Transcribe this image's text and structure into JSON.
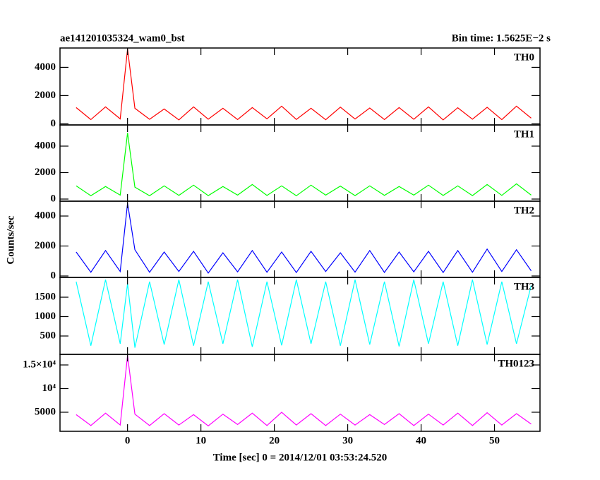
{
  "chart_data": [
    {
      "type": "line",
      "title": "ae141201035324_wam0_bst",
      "subtitle": "Bin time: 1.5625E−2 s",
      "x": [
        -7,
        -5,
        -3,
        -1,
        0,
        1,
        3,
        5,
        7,
        9,
        11,
        13,
        15,
        17,
        19,
        21,
        23,
        25,
        27,
        29,
        31,
        33,
        35,
        37,
        39,
        41,
        43,
        45,
        47,
        49,
        51,
        53,
        55
      ],
      "series": [
        {
          "name": "TH0",
          "color": "#ff0000",
          "values": [
            1150,
            300,
            1200,
            350,
            5300,
            1100,
            320,
            1050,
            280,
            1200,
            330,
            1100,
            300,
            1150,
            350,
            1250,
            310,
            1100,
            290,
            1180,
            340,
            1120,
            300,
            1150,
            320,
            1200,
            280,
            1140,
            330,
            1170,
            300,
            1250,
            400
          ]
        }
      ],
      "xlim": [
        -9.2,
        56.2
      ],
      "xticks": [
        0,
        10,
        20,
        30,
        40,
        50
      ],
      "ylim": [
        -80,
        5370
      ],
      "yticks": [
        0,
        2000,
        4000
      ]
    },
    {
      "type": "line",
      "x": [
        -7,
        -5,
        -3,
        -1,
        0,
        1,
        3,
        5,
        7,
        9,
        11,
        13,
        15,
        17,
        19,
        21,
        23,
        25,
        27,
        29,
        31,
        33,
        35,
        37,
        39,
        41,
        43,
        45,
        47,
        49,
        51,
        53,
        55
      ],
      "series": [
        {
          "name": "TH1",
          "color": "#00ff00",
          "values": [
            1000,
            250,
            950,
            300,
            5000,
            900,
            250,
            1000,
            280,
            1050,
            260,
            950,
            300,
            1100,
            270,
            1000,
            250,
            1050,
            300,
            980,
            260,
            1000,
            280,
            950,
            300,
            1050,
            270,
            1000,
            260,
            1100,
            280,
            1150,
            300
          ]
        }
      ],
      "xlim": [
        -9.2,
        56.2
      ],
      "xticks": [
        0,
        10,
        20,
        30,
        40,
        50
      ],
      "ylim": [
        -160,
        5600
      ],
      "yticks": [
        0,
        2000,
        4000
      ]
    },
    {
      "type": "line",
      "ylabel": "Counts/sec",
      "x": [
        -7,
        -5,
        -3,
        -1,
        0,
        1,
        3,
        5,
        7,
        9,
        11,
        13,
        15,
        17,
        19,
        21,
        23,
        25,
        27,
        29,
        31,
        33,
        35,
        37,
        39,
        41,
        43,
        45,
        47,
        49,
        51,
        53,
        55
      ],
      "series": [
        {
          "name": "TH2",
          "color": "#0000ff",
          "values": [
            1600,
            250,
            1700,
            300,
            4850,
            1750,
            250,
            1600,
            300,
            1650,
            200,
            1550,
            280,
            1700,
            250,
            1600,
            230,
            1650,
            300,
            1550,
            260,
            1700,
            240,
            1600,
            280,
            1650,
            230,
            1700,
            250,
            1800,
            300,
            1750,
            350
          ]
        }
      ],
      "xlim": [
        -9.2,
        56.2
      ],
      "xticks": [
        0,
        10,
        20,
        30,
        40,
        50
      ],
      "ylim": [
        -94,
        4990
      ],
      "yticks": [
        0,
        2000,
        4000
      ]
    },
    {
      "type": "line",
      "x": [
        -7,
        -5,
        -3,
        -1,
        0,
        1,
        3,
        5,
        7,
        9,
        11,
        13,
        15,
        17,
        19,
        21,
        23,
        25,
        27,
        29,
        31,
        33,
        35,
        37,
        39,
        41,
        43,
        45,
        47,
        49,
        51,
        53,
        55
      ],
      "series": [
        {
          "name": "TH3",
          "color": "#00ffff",
          "values": [
            1900,
            250,
            1950,
            300,
            1850,
            200,
            1900,
            280,
            1950,
            250,
            1900,
            300,
            1950,
            220,
            1900,
            260,
            1950,
            300,
            1900,
            250,
            1950,
            280,
            1900,
            230,
            1950,
            300,
            1900,
            250,
            1950,
            280,
            1900,
            300,
            1800
          ]
        }
      ],
      "xlim": [
        -9.2,
        56.2
      ],
      "xticks": [
        0,
        10,
        20,
        30,
        40,
        50
      ],
      "ylim": [
        27,
        2010
      ],
      "yticks": [
        500,
        1000,
        1500
      ]
    },
    {
      "type": "line",
      "xlabel": "Time [sec] 0 = 2014/12/01 03:53:24.520",
      "x": [
        -7,
        -5,
        -3,
        -1,
        0,
        1,
        3,
        5,
        7,
        9,
        11,
        13,
        15,
        17,
        19,
        21,
        23,
        25,
        27,
        29,
        31,
        33,
        35,
        37,
        39,
        41,
        43,
        45,
        47,
        49,
        51,
        53,
        55
      ],
      "series": [
        {
          "name": "TH0123",
          "color": "#ff00ff",
          "values": [
            4500,
            2200,
            4800,
            2300,
            17000,
            4600,
            2200,
            4700,
            2300,
            4500,
            2100,
            4600,
            2400,
            4800,
            2200,
            5000,
            2300,
            4700,
            2200,
            4600,
            2300,
            4500,
            2400,
            4700,
            2200,
            4600,
            2300,
            4800,
            2200,
            4900,
            2300,
            4700,
            2500
          ]
        }
      ],
      "xlim": [
        -9.2,
        56.2
      ],
      "xticks": [
        0,
        10,
        20,
        30,
        40,
        50
      ],
      "ylim": [
        970,
        17240
      ],
      "yticks": [
        5000,
        {
          "value": 10000,
          "label": "10⁴"
        },
        {
          "value": 15000,
          "label": "1.5×10⁴"
        }
      ]
    }
  ]
}
